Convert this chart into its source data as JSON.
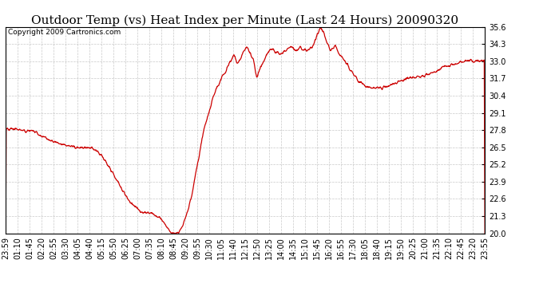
{
  "title": "Outdoor Temp (vs) Heat Index per Minute (Last 24 Hours) 20090320",
  "copyright": "Copyright 2009 Cartronics.com",
  "line_color": "#cc0000",
  "background_color": "#ffffff",
  "grid_color": "#bbbbbb",
  "ylim": [
    20.0,
    35.6
  ],
  "yticks": [
    20.0,
    21.3,
    22.6,
    23.9,
    25.2,
    26.5,
    27.8,
    29.1,
    30.4,
    31.7,
    33.0,
    34.3,
    35.6
  ],
  "xtick_labels": [
    "23:59",
    "01:10",
    "01:45",
    "02:20",
    "02:55",
    "03:30",
    "04:05",
    "04:40",
    "05:15",
    "05:50",
    "06:25",
    "07:00",
    "07:35",
    "08:10",
    "08:45",
    "09:20",
    "09:55",
    "10:30",
    "11:05",
    "11:40",
    "12:15",
    "12:50",
    "13:25",
    "14:00",
    "14:35",
    "15:10",
    "15:45",
    "16:20",
    "16:55",
    "17:30",
    "18:05",
    "18:40",
    "19:15",
    "19:50",
    "20:25",
    "21:00",
    "21:35",
    "22:10",
    "22:45",
    "23:20",
    "23:55"
  ],
  "title_fontsize": 11,
  "copyright_fontsize": 6.5,
  "tick_fontsize": 7,
  "line_width": 0.9
}
